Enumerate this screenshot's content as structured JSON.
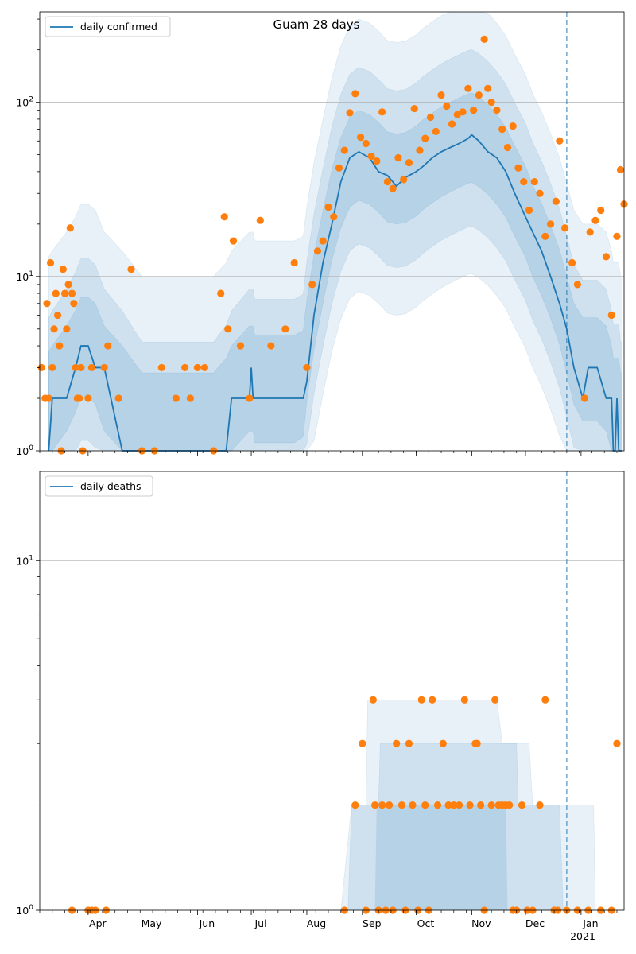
{
  "figure": {
    "title": "Guam 28 days",
    "xaxis": {
      "months": [
        "Apr",
        "May",
        "Jun",
        "Jul",
        "Aug",
        "Sep",
        "Oct",
        "Nov",
        "Dec",
        "Jan"
      ],
      "year_label": "2021"
    }
  },
  "chart_data": [
    {
      "type": "line",
      "title": "Guam 28 days",
      "x_range": [
        "2020-03-05",
        "2021-01-25"
      ],
      "y_scale": "log",
      "ylim": [
        1,
        330
      ],
      "yticks": [
        {
          "value": 1,
          "label": "10^0"
        },
        {
          "value": 10,
          "label": "10^1"
        },
        {
          "value": 100,
          "label": "10^2"
        }
      ],
      "grid": "horizontal",
      "legend": "top-left",
      "colors": {
        "line": "#1f77b4",
        "points": "#ff7f0e",
        "band": "#1f77b4",
        "vline": "#1f77b4"
      },
      "marker_date": "2020-12-24",
      "series": [
        {
          "name": "daily confirmed",
          "kind": "line",
          "x": [
            "2020-03-10",
            "2020-03-12",
            "2020-03-20",
            "2020-03-25",
            "2020-03-28",
            "2020-04-01",
            "2020-04-05",
            "2020-04-10",
            "2020-04-20",
            "2020-05-01",
            "2020-05-15",
            "2020-05-30",
            "2020-06-10",
            "2020-06-17",
            "2020-06-20",
            "2020-06-30",
            "2020-07-01",
            "2020-07-02",
            "2020-07-03",
            "2020-07-15",
            "2020-07-25",
            "2020-07-30",
            "2020-08-01",
            "2020-08-05",
            "2020-08-10",
            "2020-08-15",
            "2020-08-20",
            "2020-08-25",
            "2020-08-30",
            "2020-09-05",
            "2020-09-10",
            "2020-09-15",
            "2020-09-20",
            "2020-09-25",
            "2020-10-01",
            "2020-10-05",
            "2020-10-10",
            "2020-10-15",
            "2020-10-20",
            "2020-10-25",
            "2020-10-30",
            "2020-11-01",
            "2020-11-05",
            "2020-11-10",
            "2020-11-15",
            "2020-11-20",
            "2020-11-25",
            "2020-12-01",
            "2020-12-05",
            "2020-12-10",
            "2020-12-15",
            "2020-12-20",
            "2020-12-24",
            "2020-12-28",
            "2021-01-02",
            "2021-01-05",
            "2021-01-10",
            "2021-01-15",
            "2021-01-18",
            "2021-01-19",
            "2021-01-20",
            "2021-01-21",
            "2021-01-22",
            "2021-01-23",
            "2021-01-24"
          ],
          "y": [
            1,
            2,
            2,
            3,
            4,
            4,
            3,
            3,
            1,
            1,
            1,
            1,
            1,
            1,
            2,
            2,
            3,
            2,
            2,
            2,
            2,
            2,
            2.5,
            6,
            12,
            20,
            35,
            48,
            52,
            48,
            40,
            38,
            33,
            37,
            40,
            43,
            48,
            52,
            55,
            58,
            62,
            65,
            60,
            52,
            48,
            40,
            30,
            22,
            18,
            14,
            10,
            7,
            5,
            3,
            2,
            3,
            3,
            2,
            2,
            1,
            1,
            2,
            1,
            1,
            1
          ]
        },
        {
          "name": "",
          "kind": "scatter",
          "x": [
            "2020-03-06",
            "2020-03-08",
            "2020-03-09",
            "2020-03-10",
            "2020-03-11",
            "2020-03-12",
            "2020-03-13",
            "2020-03-14",
            "2020-03-15",
            "2020-03-16",
            "2020-03-17",
            "2020-03-18",
            "2020-03-19",
            "2020-03-20",
            "2020-03-21",
            "2020-03-22",
            "2020-03-23",
            "2020-03-24",
            "2020-03-25",
            "2020-03-26",
            "2020-03-27",
            "2020-03-28",
            "2020-03-29",
            "2020-04-01",
            "2020-04-03",
            "2020-04-10",
            "2020-04-12",
            "2020-04-18",
            "2020-04-25",
            "2020-05-01",
            "2020-05-08",
            "2020-05-12",
            "2020-05-20",
            "2020-05-25",
            "2020-05-28",
            "2020-06-01",
            "2020-06-05",
            "2020-06-10",
            "2020-06-14",
            "2020-06-16",
            "2020-06-18",
            "2020-06-21",
            "2020-06-25",
            "2020-06-30",
            "2020-07-06",
            "2020-07-12",
            "2020-07-20",
            "2020-07-25",
            "2020-08-01",
            "2020-08-04",
            "2020-08-07",
            "2020-08-10",
            "2020-08-13",
            "2020-08-16",
            "2020-08-19",
            "2020-08-22",
            "2020-08-25",
            "2020-08-28",
            "2020-08-31",
            "2020-09-03",
            "2020-09-06",
            "2020-09-09",
            "2020-09-12",
            "2020-09-15",
            "2020-09-18",
            "2020-09-21",
            "2020-09-24",
            "2020-09-27",
            "2020-09-30",
            "2020-10-03",
            "2020-10-06",
            "2020-10-09",
            "2020-10-12",
            "2020-10-15",
            "2020-10-18",
            "2020-10-21",
            "2020-10-24",
            "2020-10-27",
            "2020-10-30",
            "2020-11-02",
            "2020-11-05",
            "2020-11-08",
            "2020-11-10",
            "2020-11-12",
            "2020-11-15",
            "2020-11-18",
            "2020-11-21",
            "2020-11-24",
            "2020-11-27",
            "2020-11-30",
            "2020-12-03",
            "2020-12-06",
            "2020-12-09",
            "2020-12-12",
            "2020-12-15",
            "2020-12-18",
            "2020-12-20",
            "2020-12-23",
            "2020-12-27",
            "2020-12-30",
            "2021-01-03",
            "2021-01-06",
            "2021-01-09",
            "2021-01-12",
            "2021-01-15",
            "2021-01-18",
            "2021-01-21",
            "2021-01-23",
            "2021-01-25"
          ],
          "y": [
            3,
            2,
            7,
            2,
            12,
            3,
            5,
            8,
            6,
            4,
            1,
            11,
            8,
            5,
            9,
            19,
            8,
            7,
            3,
            2,
            2,
            3,
            1,
            2,
            3,
            3,
            4,
            2,
            11,
            1,
            1,
            3,
            2,
            3,
            2,
            3,
            3,
            1,
            8,
            22,
            5,
            16,
            4,
            2,
            21,
            4,
            5,
            12,
            3,
            9,
            14,
            16,
            25,
            22,
            42,
            53,
            87,
            112,
            63,
            58,
            49,
            46,
            88,
            35,
            32,
            48,
            36,
            45,
            92,
            53,
            62,
            82,
            68,
            110,
            95,
            75,
            85,
            88,
            120,
            90,
            110,
            230,
            120,
            100,
            90,
            70,
            55,
            73,
            42,
            35,
            24,
            35,
            30,
            17,
            20,
            27,
            60,
            19,
            12,
            9,
            2,
            18,
            21,
            24,
            13,
            6,
            17,
            41,
            26
          ]
        }
      ]
    },
    {
      "type": "line",
      "x_range": [
        "2020-03-05",
        "2021-01-25"
      ],
      "y_scale": "log",
      "ylim": [
        1,
        18
      ],
      "yticks": [
        {
          "value": 10,
          "label": "10^1"
        },
        {
          "value": 1,
          "label": "10^0"
        }
      ],
      "grid": "horizontal",
      "legend": "top-left",
      "colors": {
        "line": "#1f77b4",
        "points": "#ff7f0e",
        "band": "#1f77b4",
        "vline": "#1f77b4"
      },
      "marker_date": "2020-12-24",
      "series": [
        {
          "name": "daily deaths",
          "kind": "line",
          "x": [
            "2020-03-05",
            "2021-01-25"
          ],
          "y": [
            0,
            0
          ]
        },
        {
          "name": "",
          "kind": "scatter",
          "x": [
            "2020-03-23",
            "2020-04-01",
            "2020-04-03",
            "2020-04-05",
            "2020-04-11",
            "2020-08-22",
            "2020-08-28",
            "2020-09-01",
            "2020-09-03",
            "2020-09-07",
            "2020-09-08",
            "2020-09-10",
            "2020-09-12",
            "2020-09-14",
            "2020-09-16",
            "2020-09-18",
            "2020-09-20",
            "2020-09-23",
            "2020-09-25",
            "2020-09-27",
            "2020-09-29",
            "2020-10-02",
            "2020-10-04",
            "2020-10-06",
            "2020-10-08",
            "2020-10-10",
            "2020-10-13",
            "2020-10-16",
            "2020-10-19",
            "2020-10-22",
            "2020-10-25",
            "2020-10-28",
            "2020-10-31",
            "2020-11-03",
            "2020-11-04",
            "2020-11-06",
            "2020-11-08",
            "2020-11-12",
            "2020-11-14",
            "2020-11-16",
            "2020-11-18",
            "2020-11-20",
            "2020-11-22",
            "2020-11-24",
            "2020-11-26",
            "2020-11-29",
            "2020-12-02",
            "2020-12-05",
            "2020-12-09",
            "2020-12-12",
            "2020-12-17",
            "2020-12-19",
            "2020-12-24",
            "2020-12-30",
            "2021-01-05",
            "2021-01-12",
            "2021-01-18",
            "2021-01-21"
          ],
          "y": [
            1,
            1,
            1,
            1,
            1,
            1,
            2,
            3,
            1,
            4,
            2,
            1,
            2,
            1,
            2,
            1,
            3,
            2,
            1,
            3,
            2,
            1,
            4,
            2,
            1,
            4,
            2,
            3,
            2,
            2,
            2,
            4,
            2,
            3,
            3,
            2,
            1,
            2,
            4,
            2,
            2,
            2,
            2,
            1,
            1,
            2,
            1,
            1,
            2,
            4,
            1,
            1,
            1,
            1,
            1,
            1,
            1,
            3
          ]
        }
      ]
    }
  ]
}
